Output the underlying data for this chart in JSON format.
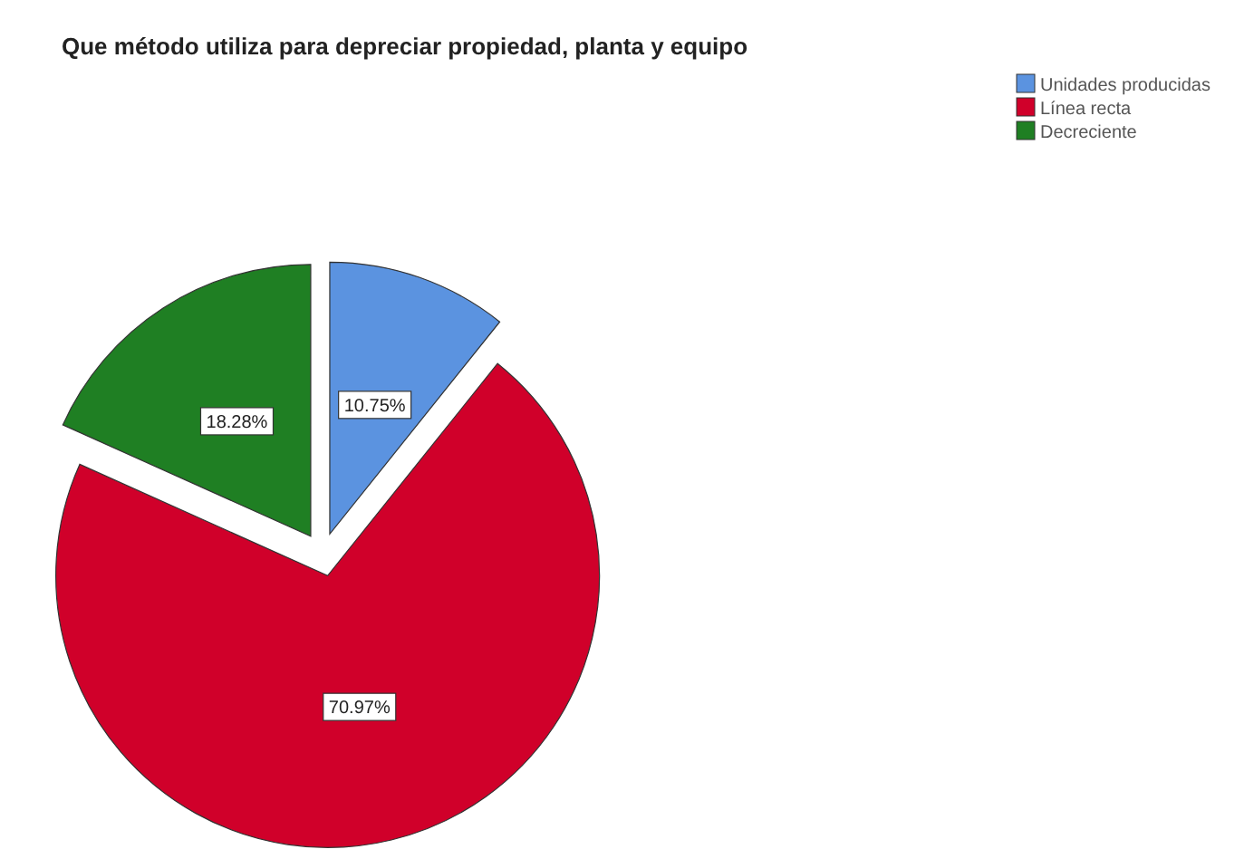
{
  "chart_data": {
    "type": "pie",
    "title": "Que método utiliza para depreciar propiedad, planta y equipo",
    "categories": [
      "Unidades producidas",
      "Línea recta",
      "Decreciente"
    ],
    "values": [
      10.75,
      70.97,
      18.28
    ],
    "colors": [
      "#5b93e0",
      "#d0002a",
      "#1f7f23"
    ],
    "value_labels": [
      "10.75%",
      "70.97%",
      "18.28%"
    ],
    "legend": "top right"
  }
}
